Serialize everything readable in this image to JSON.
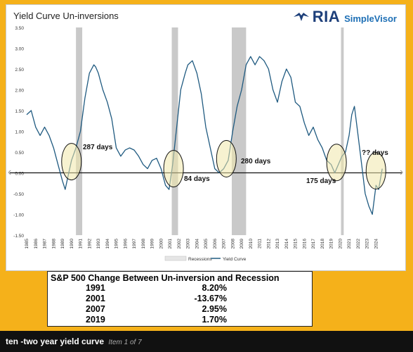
{
  "chart_data": {
    "type": "line",
    "title": "Yield Curve Un-inversions",
    "ylim": [
      -1.5,
      3.5
    ],
    "yticks": [
      -1.5,
      -1.0,
      -0.5,
      0.0,
      0.5,
      1.0,
      1.5,
      2.0,
      2.5,
      3.0,
      3.5
    ],
    "ytick_labels": [
      "-1.50",
      "-1.00",
      "-0.50",
      "0.00",
      "0.50",
      "1.00",
      "1.50",
      "2.00",
      "2.50",
      "3.00",
      "3.50"
    ],
    "xlim": [
      1985,
      2025
    ],
    "xtick_labels": [
      "1985",
      "1986",
      "1987",
      "1988",
      "1989",
      "1990",
      "1991",
      "1992",
      "1993",
      "1994",
      "1995",
      "1996",
      "1997",
      "1998",
      "1999",
      "2000",
      "2001",
      "2002",
      "2003",
      "2004",
      "2005",
      "2006",
      "2007",
      "2008",
      "2009",
      "2010",
      "2011",
      "2012",
      "2013",
      "2014",
      "2015",
      "2016",
      "2017",
      "2018",
      "2019",
      "2020",
      "2021",
      "2022",
      "2023",
      "2024"
    ],
    "legend": [
      "Recessions",
      "Yield Curve"
    ],
    "legend_position": "bottom-center",
    "recessions": [
      [
        1990.5,
        1991.2
      ],
      [
        2001.2,
        2001.9
      ],
      [
        2007.9,
        2009.5
      ],
      [
        2020.1,
        2020.4
      ]
    ],
    "series": [
      {
        "name": "Yield Curve",
        "color": "#1f5a80",
        "x": [
          1985.0,
          1985.5,
          1986.0,
          1986.5,
          1987.0,
          1987.5,
          1988.0,
          1988.5,
          1989.0,
          1989.3,
          1989.7,
          1990.0,
          1990.5,
          1991.0,
          1991.5,
          1992.0,
          1992.5,
          1992.7,
          1993.0,
          1993.5,
          1994.0,
          1994.5,
          1995.0,
          1995.5,
          1996.0,
          1996.5,
          1997.0,
          1997.5,
          1998.0,
          1998.5,
          1999.0,
          1999.5,
          2000.0,
          2000.5,
          2000.9,
          2001.3,
          2001.8,
          2002.2,
          2002.7,
          2003.0,
          2003.5,
          2004.0,
          2004.5,
          2005.0,
          2005.5,
          2006.0,
          2006.5,
          2007.0,
          2007.5,
          2008.0,
          2008.5,
          2009.0,
          2009.5,
          2010.0,
          2010.5,
          2011.0,
          2011.5,
          2012.0,
          2012.5,
          2013.0,
          2013.5,
          2014.0,
          2014.5,
          2015.0,
          2015.5,
          2016.0,
          2016.5,
          2017.0,
          2017.5,
          2018.0,
          2018.5,
          2019.0,
          2019.4,
          2019.8,
          2020.2,
          2020.6,
          2021.0,
          2021.3,
          2021.6,
          2022.0,
          2022.4,
          2022.8,
          2023.2,
          2023.6,
          2024.0,
          2024.3,
          2024.7
        ],
        "y": [
          1.4,
          1.5,
          1.1,
          0.9,
          1.1,
          0.9,
          0.6,
          0.2,
          -0.2,
          -0.4,
          0.0,
          0.3,
          0.6,
          1.0,
          1.8,
          2.4,
          2.6,
          2.55,
          2.4,
          2.0,
          1.7,
          1.3,
          0.6,
          0.4,
          0.55,
          0.6,
          0.55,
          0.4,
          0.2,
          0.1,
          0.3,
          0.35,
          0.1,
          -0.3,
          -0.4,
          0.2,
          1.2,
          2.0,
          2.4,
          2.6,
          2.7,
          2.4,
          1.9,
          1.1,
          0.6,
          0.1,
          0.0,
          0.1,
          0.3,
          1.0,
          1.6,
          2.0,
          2.6,
          2.8,
          2.6,
          2.8,
          2.7,
          2.5,
          2.0,
          1.7,
          2.2,
          2.5,
          2.3,
          1.7,
          1.6,
          1.2,
          0.9,
          1.1,
          0.8,
          0.6,
          0.3,
          0.2,
          0.0,
          0.2,
          0.4,
          0.5,
          0.9,
          1.4,
          1.6,
          0.9,
          0.2,
          -0.5,
          -0.8,
          -1.0,
          -0.3,
          -0.4,
          0.1
        ]
      }
    ],
    "annotations": [
      "287 days",
      "84 days",
      "280 days",
      "175 days",
      "?? days"
    ],
    "highlight_circles": [
      {
        "label": "287 days",
        "center_x": 1990.0,
        "center_y": 0.27
      },
      {
        "label": "84 days",
        "center_x": 2001.4,
        "center_y": 0.1
      },
      {
        "label": "280 days",
        "center_x": 2007.3,
        "center_y": 0.34
      },
      {
        "label": "175 days",
        "center_x": 2019.6,
        "center_y": 0.25
      },
      {
        "label": "?? days",
        "center_x": 2024.0,
        "center_y": 0.05
      }
    ]
  },
  "logo": {
    "brand": "RIA",
    "sub": "SimpleVisor"
  },
  "table": {
    "title": "S&P 500 Change Between Un-inversion and Recession",
    "rows": [
      {
        "year": "1991",
        "value": "8.20%"
      },
      {
        "year": "2001",
        "value": "-13.67%"
      },
      {
        "year": "2007",
        "value": "2.95%"
      },
      {
        "year": "2019",
        "value": "1.70%"
      }
    ]
  },
  "caption": {
    "text": "ten -two year yield curve",
    "sub": "Item 1 of 7"
  },
  "nav": {
    "prev": "‹",
    "next": "›"
  }
}
